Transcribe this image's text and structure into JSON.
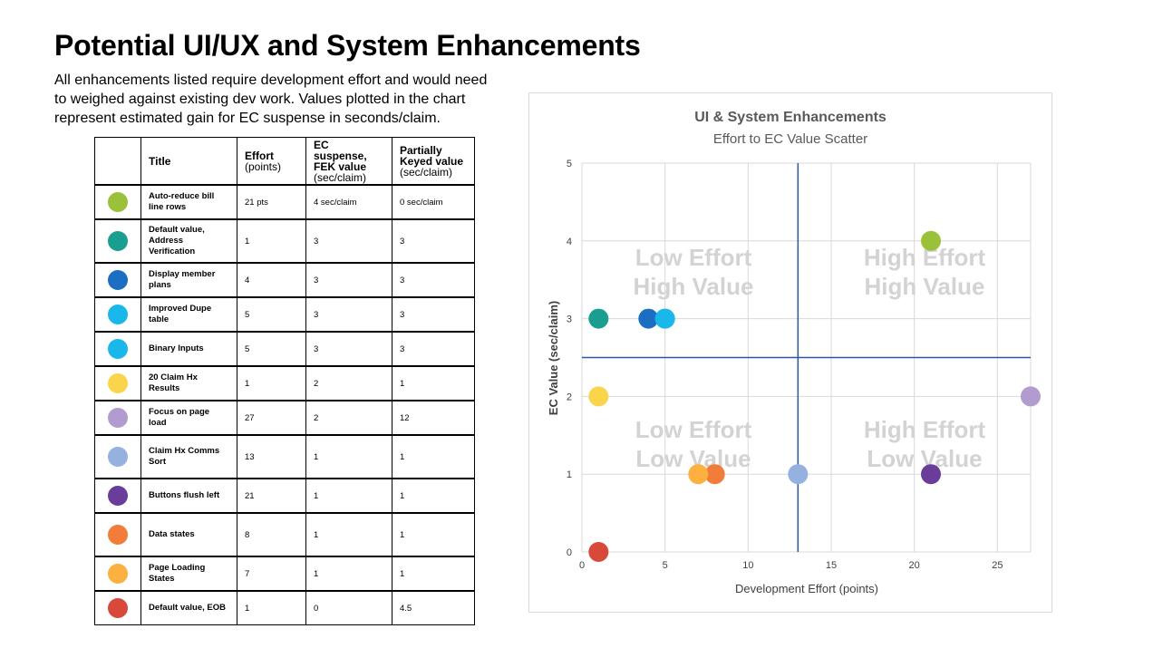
{
  "page": {
    "title": "Potential UI/UX and System Enhancements",
    "description_lines": [
      "All enhancements listed require development effort and would need",
      "to weighed against existing dev work. Values plotted in the chart",
      "represent estimated gain for EC suspense in seconds/claim."
    ]
  },
  "table": {
    "headers": {
      "title": "Title",
      "effort": "Effort",
      "effort_unit": "(points)",
      "ec": "EC suspense, FEK value",
      "ec_unit": "(sec/claim)",
      "pk": "Partially Keyed value",
      "pk_unit": "(sec/claim)"
    },
    "rows": [
      {
        "color": "#9bc13b",
        "title": "Auto-reduce bill line rows",
        "effort": "21 pts",
        "ec": "4 sec/claim",
        "pk": "0 sec/claim"
      },
      {
        "color": "#1a9e8f",
        "title": "Default value, Address Verification",
        "effort": "1",
        "ec": "3",
        "pk": "3"
      },
      {
        "color": "#1b6ec2",
        "title": "Display member plans",
        "effort": "4",
        "ec": "3",
        "pk": "3"
      },
      {
        "color": "#1ab8ea",
        "title": "Improved Dupe table",
        "effort": "5",
        "ec": "3",
        "pk": "3"
      },
      {
        "color": "#1ab8ea",
        "title": "Binary Inputs",
        "effort": "5",
        "ec": "3",
        "pk": "3"
      },
      {
        "color": "#fad54b",
        "title": "20 Claim Hx Results",
        "effort": "1",
        "ec": "2",
        "pk": "1"
      },
      {
        "color": "#b29ccf",
        "title": "Focus on page load",
        "effort": "27",
        "ec": "2",
        "pk": "12"
      },
      {
        "color": "#95b1df",
        "title": "Claim Hx Comms Sort",
        "effort": "13",
        "ec": "1",
        "pk": "1"
      },
      {
        "color": "#6a3d9a",
        "title": "Buttons flush left",
        "effort": "21",
        "ec": "1",
        "pk": "1"
      },
      {
        "color": "#f27c3a",
        "title": "Data states",
        "effort": "8",
        "ec": "1",
        "pk": "1"
      },
      {
        "color": "#fbb040",
        "title": "Page Loading States",
        "effort": "7",
        "ec": "1",
        "pk": "1"
      },
      {
        "color": "#d9493b",
        "title": "Default value, EOB",
        "effort": "1",
        "ec": "0",
        "pk": "4.5"
      }
    ]
  },
  "chart_data": {
    "type": "scatter",
    "title": "UI & System Enhancements",
    "subtitle": "Effort to EC Value Scatter",
    "xlabel": "Development Effort (points)",
    "ylabel": "EC Value (sec/claim)",
    "xlim": [
      0,
      27
    ],
    "ylim": [
      0,
      5
    ],
    "xticks": [
      0,
      5,
      10,
      15,
      20,
      25
    ],
    "yticks": [
      0,
      1,
      2,
      3,
      4,
      5
    ],
    "grid": true,
    "divider_lines": {
      "x": 13,
      "y": 2.5,
      "color": "#2f55a4"
    },
    "quadrant_labels": [
      {
        "line1": "Low Effort",
        "line2": "High Value"
      },
      {
        "line1": "High Effort",
        "line2": "High Value"
      },
      {
        "line1": "Low Effort",
        "line2": "Low Value"
      },
      {
        "line1": "High Effort",
        "line2": "Low Value"
      }
    ],
    "points": [
      {
        "x": 21,
        "y": 4,
        "color": "#9bc13b"
      },
      {
        "x": 1,
        "y": 3,
        "color": "#1a9e8f"
      },
      {
        "x": 4,
        "y": 3,
        "color": "#1b6ec2"
      },
      {
        "x": 5,
        "y": 3,
        "color": "#1ab8ea"
      },
      {
        "x": 5,
        "y": 3,
        "color": "#1ab8ea"
      },
      {
        "x": 1,
        "y": 2,
        "color": "#fad54b"
      },
      {
        "x": 27,
        "y": 2,
        "color": "#b29ccf"
      },
      {
        "x": 13,
        "y": 1,
        "color": "#95b1df"
      },
      {
        "x": 21,
        "y": 1,
        "color": "#6a3d9a"
      },
      {
        "x": 8,
        "y": 1,
        "color": "#f27c3a"
      },
      {
        "x": 7,
        "y": 1,
        "color": "#fbb040"
      },
      {
        "x": 1,
        "y": 0,
        "color": "#d9493b"
      }
    ]
  }
}
